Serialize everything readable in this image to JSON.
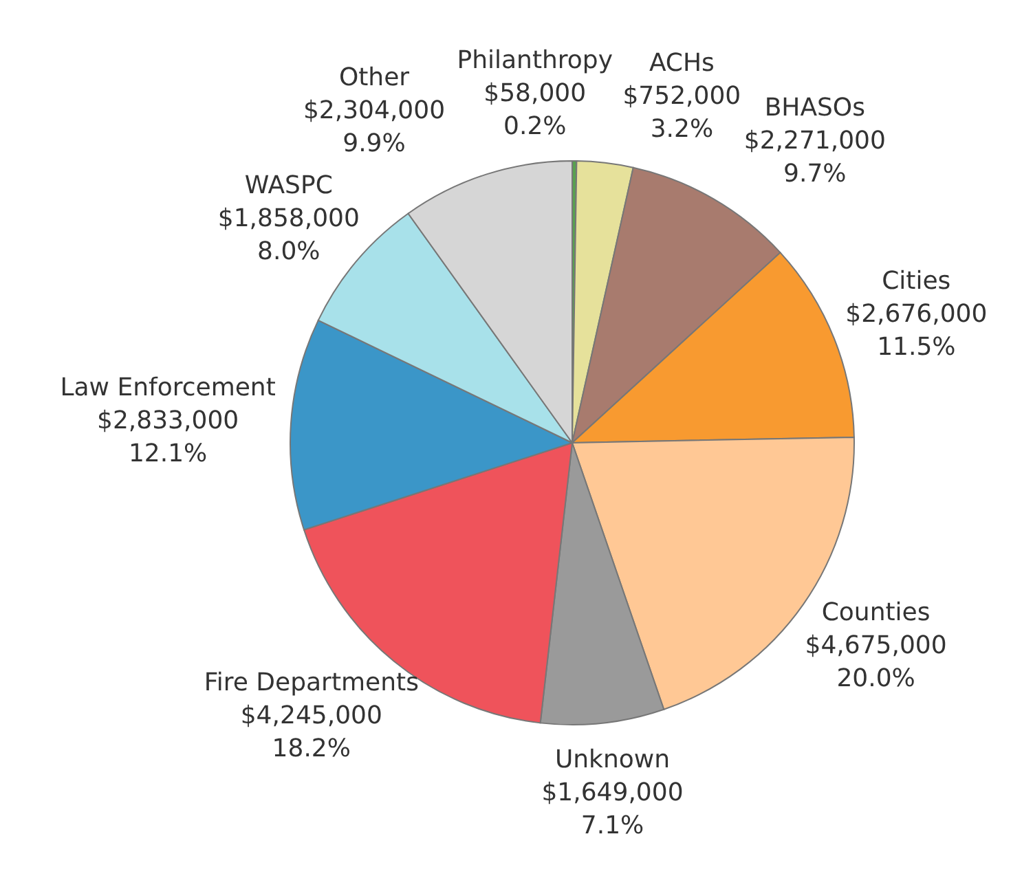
{
  "chart_data": {
    "type": "pie",
    "categories": [
      "Philanthropy",
      "ACHs",
      "BHASOs",
      "Cities",
      "Counties",
      "Unknown",
      "Fire Departments",
      "Law Enforcement",
      "WASPC",
      "Other"
    ],
    "values": [
      58000,
      752000,
      2271000,
      2676000,
      4675000,
      1649000,
      4245000,
      2833000,
      1858000,
      2304000
    ],
    "value_labels": [
      "$58,000\n0.2%",
      "$752,000\n3.2%",
      "$2,271,000\n9.7%",
      "$2,676,000\n11.5%",
      "$4,675,000\n20.0%",
      "$1,649,000\n7.1%",
      "$4,245,000\n18.2%",
      "$2,833,000\n12.1%",
      "$1,858,000\n8.0%",
      "$2,304,000\n9.9%"
    ],
    "colors": [
      "#59a14f",
      "#e6e19b",
      "#a87b6e",
      "#f89a30",
      "#ffc895",
      "#9a9a9a",
      "#ef535b",
      "#3b96c8",
      "#a8e1ea",
      "#d6d6d6"
    ]
  }
}
